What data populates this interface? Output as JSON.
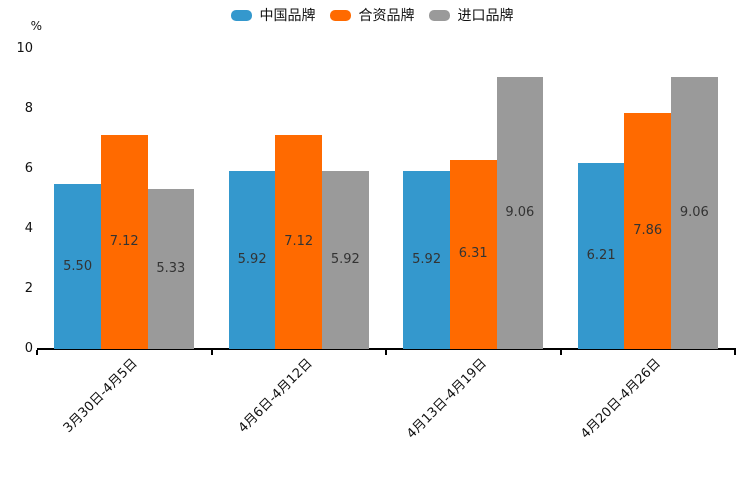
{
  "chart_data": {
    "type": "bar",
    "title": "",
    "ylabel": "%",
    "xlabel": "",
    "ylim": [
      0,
      10
    ],
    "yticks": [
      0,
      2,
      4,
      6,
      8,
      10
    ],
    "grid": false,
    "legend_position": "top",
    "value_label_decimals": 2,
    "categories": [
      "3月30日-4月5日",
      "4月6日-4月12日",
      "4月13日-4月19日",
      "4月20日-4月26日"
    ],
    "series": [
      {
        "name": "中国品牌",
        "color": "#3498CD",
        "values": [
          5.5,
          5.92,
          5.92,
          6.21
        ]
      },
      {
        "name": "合资品牌",
        "color": "#FF6A00",
        "values": [
          7.12,
          7.12,
          6.31,
          7.86
        ]
      },
      {
        "name": "进口品牌",
        "color": "#9A9A9A",
        "values": [
          5.33,
          5.92,
          9.06,
          9.06
        ]
      }
    ],
    "value_label_color": "#333333",
    "axis_color": "#000000",
    "text_color": "#111111"
  }
}
